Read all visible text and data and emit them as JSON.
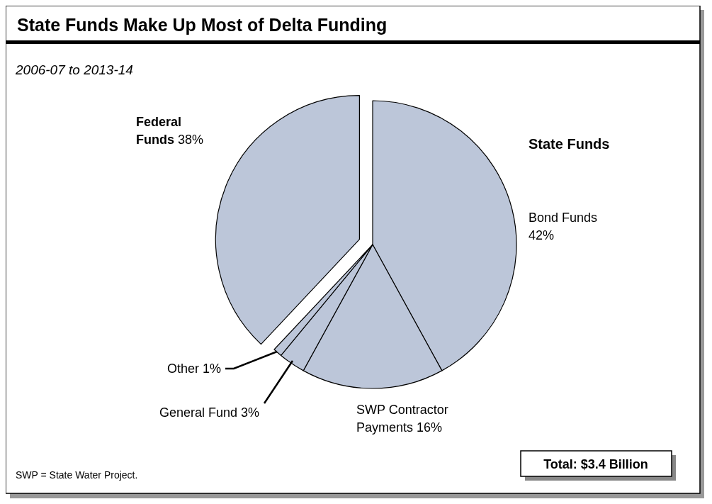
{
  "chart_data": {
    "type": "pie",
    "title": "State Funds Make Up Most of Delta Funding",
    "subtitle": "2006-07 to 2013-14",
    "categories": [
      "Bond Funds",
      "SWP Contractor Payments",
      "General Fund",
      "Other",
      "Federal Funds"
    ],
    "values": [
      42,
      16,
      3,
      1,
      38
    ],
    "colors": [
      "#bcc6d9",
      "#bcc6d9",
      "#bcc6d9",
      "#bcc6d9",
      "#bcc6d9"
    ],
    "value_labels": [
      "42%",
      "16%",
      "3%",
      "1%",
      "38%"
    ],
    "annotations": [
      "State Funds",
      "Total: $3.4 Billion",
      "SWP = State Water Project."
    ]
  }
}
